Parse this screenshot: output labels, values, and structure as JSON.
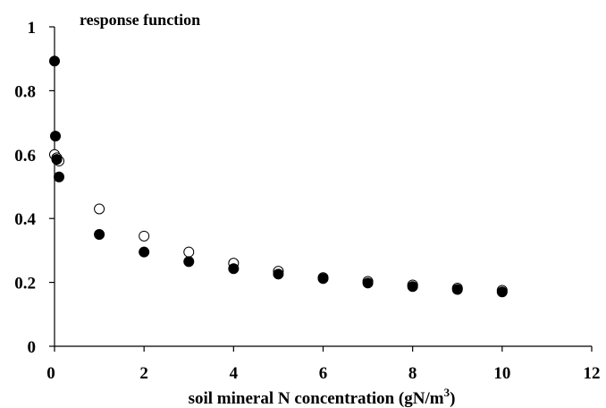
{
  "chart_data": {
    "type": "scatter",
    "title": "response function",
    "xlabel": "soil mineral N concentration (gN/m",
    "xlabel_superscript": "3",
    "xlabel_suffix": ")",
    "ylabel": "",
    "xlim": [
      0,
      12
    ],
    "ylim": [
      0,
      1
    ],
    "x_ticks": [
      0,
      2,
      4,
      6,
      8,
      10,
      12
    ],
    "x_tick_labels": [
      "0",
      "2",
      "4",
      "6",
      "8",
      "10",
      "12"
    ],
    "y_ticks": [
      0,
      0.2,
      0.4,
      0.6,
      0.8,
      1
    ],
    "y_tick_labels": [
      "0",
      "0.2",
      "0.4",
      "0.6",
      "0.8",
      "1"
    ],
    "grid": false,
    "legend": "none",
    "series": [
      {
        "marker": "open-circle",
        "color": "#000000",
        "points": [
          {
            "x": 0.0,
            "y": 0.6
          },
          {
            "x": 0.05,
            "y": 0.59
          },
          {
            "x": 0.1,
            "y": 0.58
          },
          {
            "x": 1,
            "y": 0.43
          },
          {
            "x": 2,
            "y": 0.345
          },
          {
            "x": 3,
            "y": 0.295
          },
          {
            "x": 4,
            "y": 0.26
          },
          {
            "x": 5,
            "y": 0.235
          },
          {
            "x": 6,
            "y": 0.215
          },
          {
            "x": 7,
            "y": 0.203
          },
          {
            "x": 8,
            "y": 0.192
          },
          {
            "x": 9,
            "y": 0.182
          },
          {
            "x": 10,
            "y": 0.175
          }
        ]
      },
      {
        "marker": "filled-circle",
        "color": "#000000",
        "points": [
          {
            "x": 0.0,
            "y": 0.893
          },
          {
            "x": 0.02,
            "y": 0.658
          },
          {
            "x": 0.05,
            "y": 0.585
          },
          {
            "x": 0.1,
            "y": 0.53
          },
          {
            "x": 1,
            "y": 0.35
          },
          {
            "x": 2,
            "y": 0.295
          },
          {
            "x": 3,
            "y": 0.265
          },
          {
            "x": 4,
            "y": 0.243
          },
          {
            "x": 5,
            "y": 0.226
          },
          {
            "x": 6,
            "y": 0.212
          },
          {
            "x": 7,
            "y": 0.198
          },
          {
            "x": 8,
            "y": 0.187
          },
          {
            "x": 9,
            "y": 0.178
          },
          {
            "x": 10,
            "y": 0.17
          }
        ]
      }
    ]
  }
}
